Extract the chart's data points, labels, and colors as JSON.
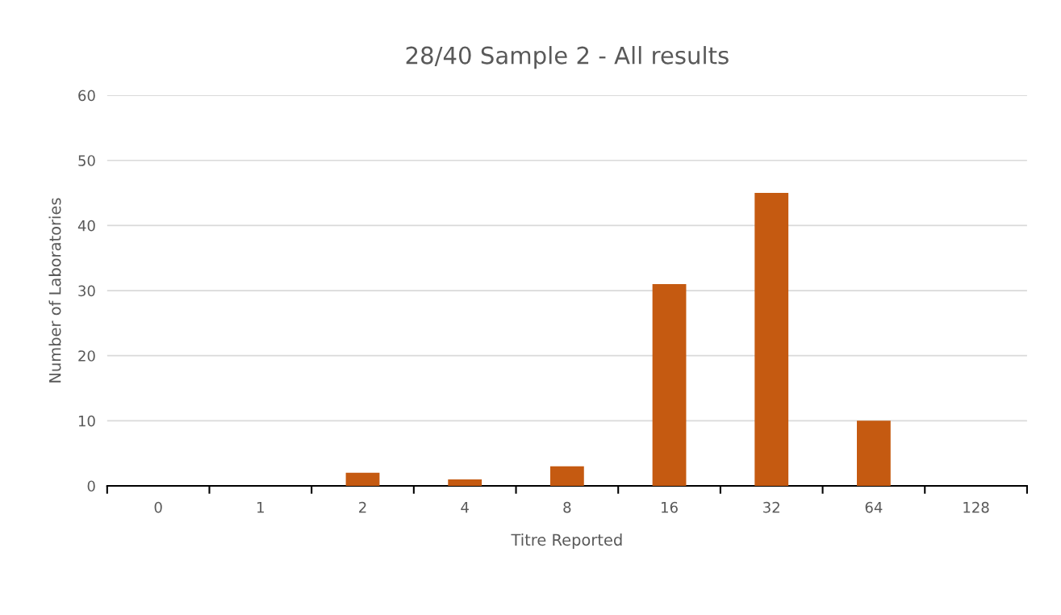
{
  "chart_data": {
    "type": "bar",
    "title": "28/40 Sample 2 - All results",
    "xlabel": "Titre Reported",
    "ylabel": "Number of Laboratories",
    "categories": [
      "0",
      "1",
      "2",
      "4",
      "8",
      "16",
      "32",
      "64",
      "128"
    ],
    "values": [
      0,
      0,
      2,
      1,
      3,
      31,
      45,
      10,
      0
    ],
    "color": "#c55a11",
    "ylim": [
      0,
      60
    ],
    "yticks": [
      0,
      10,
      20,
      30,
      40,
      50,
      60
    ],
    "grid": "y",
    "legend": false
  }
}
